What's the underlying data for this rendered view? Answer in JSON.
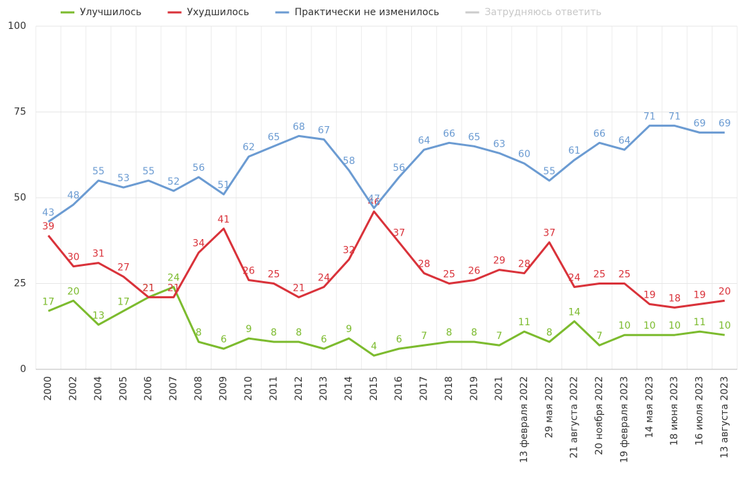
{
  "chart_data": {
    "type": "line",
    "categories": [
      "2000",
      "2002",
      "2004",
      "2005",
      "2006",
      "2007",
      "2008",
      "2009",
      "2010",
      "2011",
      "2012",
      "2013",
      "2014",
      "2015",
      "2016",
      "2017",
      "2018",
      "2019",
      "2021",
      "13 февраля 2022",
      "29 мая 2022",
      "21 августа 2022",
      "20 ноября 2022",
      "19 февраля 2023",
      "14 мая 2023",
      "18 июня 2023",
      "16 июля 2023",
      "13 августа 2023"
    ],
    "series": [
      {
        "name": "Улучшилось",
        "color": "#7cbb2e",
        "values": [
          17,
          20,
          13,
          17,
          21,
          24,
          8,
          6,
          9,
          8,
          8,
          6,
          9,
          4,
          6,
          7,
          8,
          8,
          7,
          11,
          8,
          14,
          7,
          10,
          10,
          10,
          11,
          10
        ]
      },
      {
        "name": "Ухудшилось",
        "color": "#d9323a",
        "values": [
          39,
          30,
          31,
          27,
          21,
          21,
          34,
          41,
          26,
          25,
          21,
          24,
          32,
          46,
          37,
          28,
          25,
          26,
          29,
          28,
          37,
          24,
          25,
          25,
          19,
          18,
          19,
          20
        ]
      },
      {
        "name": "Практически не изменилось",
        "color": "#6b9bd2",
        "values": [
          43,
          48,
          55,
          53,
          55,
          52,
          56,
          51,
          62,
          65,
          68,
          67,
          58,
          47,
          56,
          64,
          66,
          65,
          63,
          60,
          55,
          61,
          66,
          64,
          71,
          71,
          69,
          69
        ]
      }
    ],
    "legend_inactive": [
      {
        "name": "Затрудняюсь ответить",
        "color": "#cccccc"
      }
    ],
    "ylim": [
      0,
      100
    ],
    "yticks": [
      0,
      25,
      50,
      75,
      100
    ],
    "grid": true
  }
}
